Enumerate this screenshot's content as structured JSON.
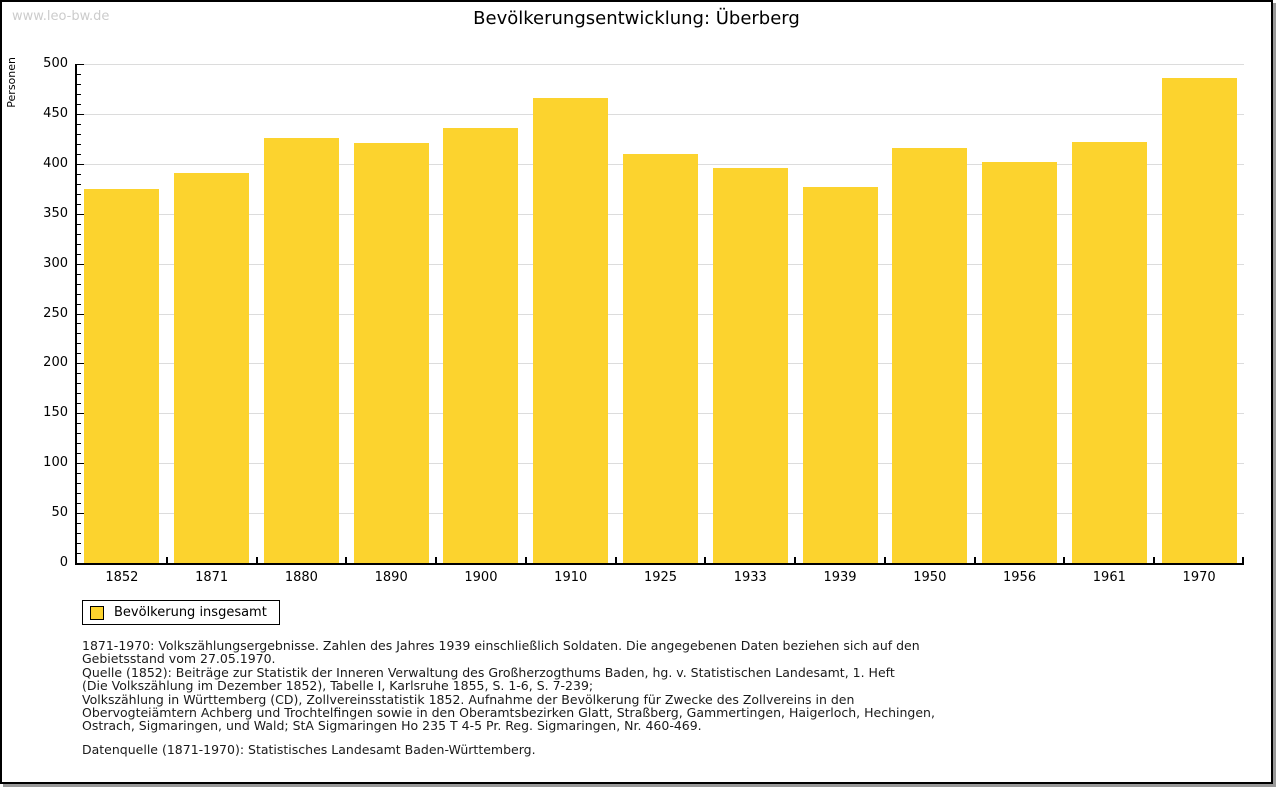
{
  "watermark": "www.leo-bw.de",
  "title": "Bevölkerungsentwicklung: Überberg",
  "colors": {
    "bar": "#fcd32e",
    "grid": "#dcdcdc",
    "axis": "#000000",
    "watermark": "#cccccc"
  },
  "chart_data": {
    "type": "bar",
    "title": "Bevölkerungsentwicklung: Überberg",
    "xlabel": "",
    "ylabel": "Personen",
    "ylim": [
      0,
      500
    ],
    "ytick_major": 50,
    "ytick_minor": 10,
    "grid": true,
    "legend_position": "bottom-left-outside",
    "categories": [
      "1852",
      "1871",
      "1880",
      "1890",
      "1900",
      "1910",
      "1925",
      "1933",
      "1939",
      "1950",
      "1956",
      "1961",
      "1970"
    ],
    "series": [
      {
        "name": "Bevölkerung insgesamt",
        "color": "#fcd32e",
        "values": [
          375,
          391,
          426,
          421,
          436,
          466,
          410,
          396,
          377,
          416,
          402,
          422,
          486
        ]
      }
    ]
  },
  "legend": {
    "label": "Bevölkerung insgesamt"
  },
  "footnotes": [
    "1871-1970: Volkszählungsergebnisse. Zahlen des Jahres 1939 einschließlich Soldaten. Die angegebenen Daten beziehen sich auf den",
    "Gebietsstand vom 27.05.1970.",
    "Quelle (1852): Beiträge zur Statistik der Inneren Verwaltung des Großherzogthums Baden, hg. v. Statistischen Landesamt, 1. Heft",
    "(Die Volkszählung im Dezember 1852), Tabelle I, Karlsruhe 1855, S. 1-6, S. 7-239;",
    "Volkszählung in Württemberg (CD), Zollvereinsstatistik 1852. Aufnahme der Bevölkerung für Zwecke des Zollvereins in den",
    "Obervogteiämtern Achberg und Trochtelfingen sowie in den Oberamtsbezirken Glatt, Straßberg, Gammertingen, Haigerloch, Hechingen,",
    "Ostrach, Sigmaringen, und Wald; StA Sigmaringen Ho 235 T 4-5 Pr. Reg. Sigmaringen, Nr. 460-469."
  ],
  "datasource": "Datenquelle (1871-1970): Statistisches Landesamt Baden-Württemberg."
}
